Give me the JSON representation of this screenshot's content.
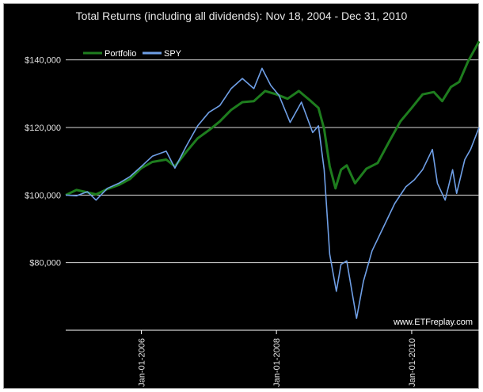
{
  "chart_data": {
    "type": "line",
    "title": "Total Returns (including all dividends): Nov 18, 2004 - Dec 31, 2010",
    "xlabel": "",
    "ylabel": "",
    "x_range": [
      "2004-11-18",
      "2010-12-31"
    ],
    "ylim": [
      60000,
      150000
    ],
    "y_ticks": [
      80000,
      100000,
      120000,
      140000
    ],
    "y_tick_labels": [
      "$80,000",
      "$100,000",
      "$120,000",
      "$140,000"
    ],
    "x_ticks": [
      "2006-01-01",
      "2008-01-01",
      "2010-01-01"
    ],
    "x_tick_labels": [
      "Jan-01-2006",
      "Jan-01-2008",
      "Jan-01-2010"
    ],
    "grid": "horizontal",
    "legend_position": "top-left",
    "annotation": "www.ETFreplay.com",
    "series": [
      {
        "name": "Portfolio",
        "color": "#1e7d1e",
        "points": [
          [
            "2004-11-18",
            100000
          ],
          [
            "2005-01-15",
            101500
          ],
          [
            "2005-03-15",
            100800
          ],
          [
            "2005-05-01",
            100200
          ],
          [
            "2005-07-01",
            101800
          ],
          [
            "2005-09-01",
            103000
          ],
          [
            "2005-11-01",
            104800
          ],
          [
            "2006-01-01",
            108000
          ],
          [
            "2006-03-01",
            109800
          ],
          [
            "2006-05-15",
            110500
          ],
          [
            "2006-07-01",
            108500
          ],
          [
            "2006-09-01",
            112800
          ],
          [
            "2006-11-01",
            116800
          ],
          [
            "2007-01-01",
            119200
          ],
          [
            "2007-03-01",
            121800
          ],
          [
            "2007-05-01",
            125200
          ],
          [
            "2007-07-01",
            127500
          ],
          [
            "2007-09-01",
            127800
          ],
          [
            "2007-11-01",
            130800
          ],
          [
            "2008-01-01",
            129800
          ],
          [
            "2008-03-01",
            128500
          ],
          [
            "2008-05-01",
            130800
          ],
          [
            "2008-07-01",
            128000
          ],
          [
            "2008-08-15",
            125800
          ],
          [
            "2008-09-15",
            119500
          ],
          [
            "2008-10-15",
            108500
          ],
          [
            "2008-11-15",
            102000
          ],
          [
            "2008-12-15",
            107500
          ],
          [
            "2009-01-15",
            108800
          ],
          [
            "2009-03-01",
            103500
          ],
          [
            "2009-05-01",
            107800
          ],
          [
            "2009-07-01",
            109500
          ],
          [
            "2009-09-01",
            115800
          ],
          [
            "2009-11-01",
            121800
          ],
          [
            "2010-01-01",
            125800
          ],
          [
            "2010-03-01",
            129800
          ],
          [
            "2010-05-01",
            130500
          ],
          [
            "2010-06-15",
            127800
          ],
          [
            "2010-08-01",
            132000
          ],
          [
            "2010-09-15",
            133500
          ],
          [
            "2010-11-01",
            139500
          ],
          [
            "2010-12-31",
            145500
          ]
        ]
      },
      {
        "name": "SPY",
        "color": "#6f9fe6",
        "points": [
          [
            "2004-11-18",
            100000
          ],
          [
            "2005-01-15",
            99800
          ],
          [
            "2005-03-15",
            101000
          ],
          [
            "2005-05-01",
            98500
          ],
          [
            "2005-07-01",
            102000
          ],
          [
            "2005-09-01",
            103500
          ],
          [
            "2005-11-01",
            105500
          ],
          [
            "2006-01-01",
            108500
          ],
          [
            "2006-03-01",
            111500
          ],
          [
            "2006-05-15",
            113000
          ],
          [
            "2006-07-01",
            108000
          ],
          [
            "2006-09-01",
            114500
          ],
          [
            "2006-11-01",
            120500
          ],
          [
            "2007-01-01",
            124500
          ],
          [
            "2007-03-01",
            126500
          ],
          [
            "2007-05-01",
            131500
          ],
          [
            "2007-07-01",
            134500
          ],
          [
            "2007-09-01",
            131500
          ],
          [
            "2007-10-15",
            137500
          ],
          [
            "2007-12-01",
            132500
          ],
          [
            "2008-01-15",
            129500
          ],
          [
            "2008-03-15",
            121500
          ],
          [
            "2008-05-15",
            127500
          ],
          [
            "2008-07-15",
            118500
          ],
          [
            "2008-08-15",
            120500
          ],
          [
            "2008-09-15",
            107500
          ],
          [
            "2008-10-15",
            82500
          ],
          [
            "2008-11-20",
            71500
          ],
          [
            "2008-12-15",
            79500
          ],
          [
            "2009-01-15",
            80500
          ],
          [
            "2009-03-09",
            63500
          ],
          [
            "2009-04-15",
            74500
          ],
          [
            "2009-06-01",
            83500
          ],
          [
            "2009-08-01",
            90500
          ],
          [
            "2009-10-01",
            97500
          ],
          [
            "2009-12-01",
            102500
          ],
          [
            "2010-01-15",
            104500
          ],
          [
            "2010-03-01",
            107500
          ],
          [
            "2010-04-23",
            113500
          ],
          [
            "2010-05-20",
            103500
          ],
          [
            "2010-07-01",
            98500
          ],
          [
            "2010-08-10",
            107500
          ],
          [
            "2010-09-01",
            100500
          ],
          [
            "2010-10-15",
            110500
          ],
          [
            "2010-11-15",
            113500
          ],
          [
            "2010-12-31",
            120000
          ]
        ]
      }
    ]
  }
}
